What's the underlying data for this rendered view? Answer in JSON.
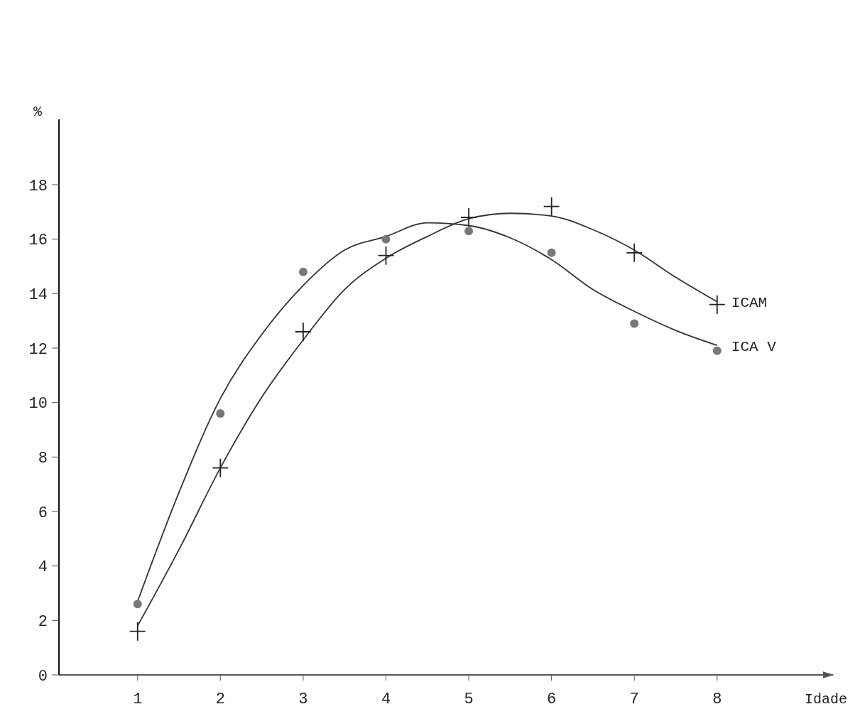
{
  "chart_data": {
    "type": "scatter",
    "xlabel": "Idade",
    "ylabel": "%",
    "xlim": [
      0.05,
      9.4
    ],
    "ylim": [
      0,
      20.4
    ],
    "xticks": [
      1,
      2,
      3,
      4,
      5,
      6,
      7,
      8
    ],
    "yticks": [
      0,
      2,
      4,
      6,
      8,
      10,
      12,
      14,
      16,
      18
    ],
    "grid": false,
    "legend": false,
    "series": [
      {
        "type": "line",
        "name": "ICAM",
        "color": "#333333",
        "marker": "none",
        "x": [
          1,
          1.5,
          2,
          2.5,
          3,
          3.5,
          4,
          4.5,
          5,
          5.5,
          6,
          6.5,
          7,
          7.5,
          8
        ],
        "values": [
          1.8,
          4.6,
          7.6,
          10.2,
          12.3,
          14.15,
          15.3,
          16.1,
          16.75,
          16.95,
          16.85,
          16.35,
          15.6,
          14.6,
          13.7
        ]
      },
      {
        "type": "line",
        "name": "ICA V",
        "color": "#333333",
        "marker": "none",
        "x": [
          1,
          1.5,
          2,
          2.5,
          3,
          3.5,
          4,
          4.5,
          5,
          5.5,
          6,
          6.5,
          7,
          7.5,
          8
        ],
        "values": [
          2.7,
          6.7,
          10.15,
          12.5,
          14.3,
          15.6,
          16.1,
          16.6,
          16.5,
          16.05,
          15.25,
          14.15,
          13.35,
          12.65,
          12.1
        ]
      },
      {
        "color": "#222222",
        "marker": "cross",
        "x": [
          1,
          2,
          3,
          4,
          5,
          6,
          7,
          8
        ],
        "values": [
          1.6,
          7.6,
          12.6,
          15.4,
          16.8,
          17.2,
          15.5,
          13.6
        ]
      },
      {
        "color": "#777777",
        "marker": "circle",
        "x": [
          1,
          2,
          3,
          4,
          5,
          6,
          7,
          8
        ],
        "values": [
          2.6,
          9.6,
          14.8,
          16.0,
          16.3,
          15.5,
          12.9,
          11.9
        ]
      }
    ]
  }
}
